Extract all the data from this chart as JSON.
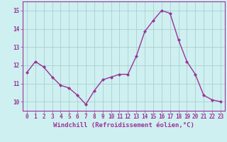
{
  "x": [
    0,
    1,
    2,
    3,
    4,
    5,
    6,
    7,
    8,
    9,
    10,
    11,
    12,
    13,
    14,
    15,
    16,
    17,
    18,
    19,
    20,
    21,
    22,
    23
  ],
  "y": [
    11.6,
    12.2,
    11.9,
    11.35,
    10.9,
    10.75,
    10.35,
    9.85,
    10.6,
    11.2,
    11.35,
    11.5,
    11.5,
    12.5,
    13.85,
    14.45,
    15.0,
    14.85,
    13.4,
    12.2,
    11.5,
    10.35,
    10.1,
    10.0
  ],
  "line_color": "#993399",
  "marker": "D",
  "marker_size": 2.0,
  "bg_color": "#cff0f0",
  "grid_color": "#aacfcf",
  "xlabel": "Windchill (Refroidissement éolien,°C)",
  "ylim": [
    9.5,
    15.5
  ],
  "xlim": [
    -0.5,
    23.5
  ],
  "yticks": [
    10,
    11,
    12,
    13,
    14,
    15
  ],
  "xticks": [
    0,
    1,
    2,
    3,
    4,
    5,
    6,
    7,
    8,
    9,
    10,
    11,
    12,
    13,
    14,
    15,
    16,
    17,
    18,
    19,
    20,
    21,
    22,
    23
  ],
  "tick_fontsize": 5.5,
  "xlabel_fontsize": 6.5,
  "label_color": "#993399",
  "spine_color": "#993399",
  "linewidth": 1.0
}
